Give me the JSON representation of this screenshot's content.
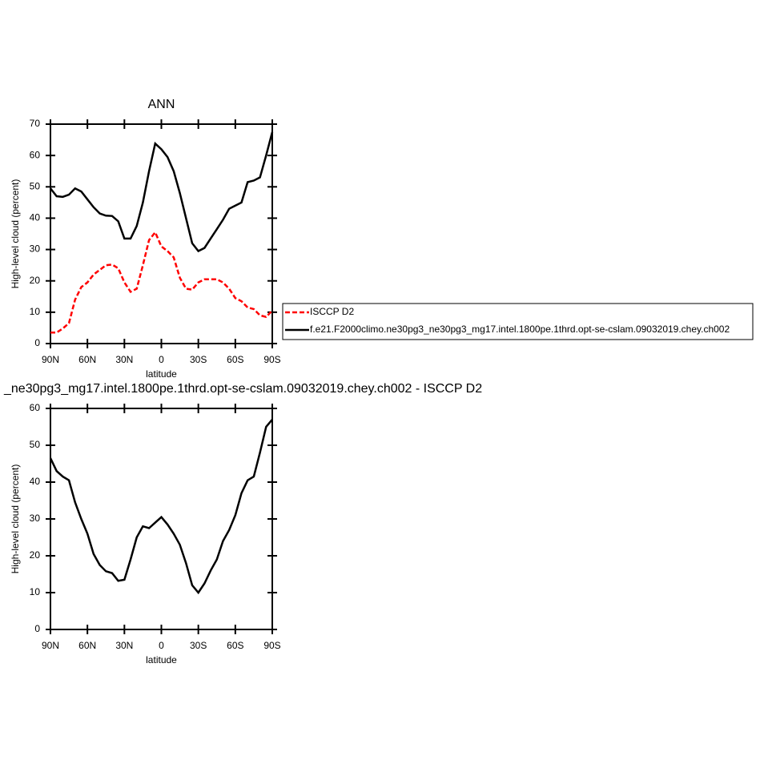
{
  "chart_data": [
    {
      "type": "line",
      "title": "ANN",
      "xlabel": "latitude",
      "ylabel": "High-level cloud (percent)",
      "x": [
        90,
        85,
        80,
        75,
        70,
        65,
        60,
        55,
        50,
        45,
        40,
        35,
        30,
        25,
        20,
        15,
        10,
        5,
        0,
        -5,
        -10,
        -15,
        -20,
        -25,
        -30,
        -35,
        -40,
        -45,
        -50,
        -55,
        -60,
        -65,
        -70,
        -75,
        -80,
        -85,
        -90
      ],
      "series": [
        {
          "name": "ISCCP D2",
          "color": "#ff0000",
          "line_style": "dashed",
          "values": [
            3.5,
            3.5,
            4.8,
            6.5,
            14,
            18,
            19.5,
            22,
            23.5,
            25,
            25.2,
            24,
            19.5,
            16.5,
            17.5,
            25,
            33,
            35.5,
            31,
            29.5,
            27.5,
            21,
            17.5,
            17.2,
            19.5,
            20.5,
            20.5,
            20.5,
            19.5,
            17.5,
            14.5,
            13.5,
            11.5,
            11,
            9,
            8.5,
            10.5
          ]
        },
        {
          "name": "f.e21.F2000climo.ne30pg3_ne30pg3_mg17.intel.1800pe.1thrd.opt-se-cslam.09032019.chey.ch002",
          "color": "#000000",
          "line_style": "solid",
          "values": [
            49.5,
            47,
            46.8,
            47.5,
            49.5,
            48.5,
            46,
            43.5,
            41.5,
            40.8,
            40.7,
            39,
            33.5,
            33.5,
            37.5,
            45,
            55,
            63.8,
            62,
            59.5,
            55,
            48,
            40,
            32,
            29.5,
            30.5,
            33.5,
            36.5,
            39.5,
            43,
            44,
            45,
            51.5,
            52,
            53,
            60,
            67.5
          ]
        }
      ],
      "xlim": [
        90,
        -90
      ],
      "xticks": [
        {
          "value": 90,
          "label": "90N"
        },
        {
          "value": 60,
          "label": "60N"
        },
        {
          "value": 30,
          "label": "30N"
        },
        0,
        {
          "value": -30,
          "label": "30S"
        },
        {
          "value": -60,
          "label": "60S"
        },
        {
          "value": -90,
          "label": "90S"
        }
      ],
      "ylim": [
        0,
        70
      ],
      "yticks": [
        0,
        10,
        20,
        30,
        40,
        50,
        60,
        70
      ],
      "legend": "right"
    },
    {
      "type": "line",
      "title": "_ne30pg3_mg17.intel.1800pe.1thrd.opt-se-cslam.09032019.chey.ch002 - ISCCP D2",
      "xlabel": "latitude",
      "ylabel": "High-level cloud (percent)",
      "x": [
        90,
        85,
        80,
        75,
        70,
        65,
        60,
        55,
        50,
        45,
        40,
        35,
        30,
        25,
        20,
        15,
        10,
        5,
        0,
        -5,
        -10,
        -15,
        -20,
        -25,
        -30,
        -35,
        -40,
        -45,
        -50,
        -55,
        -60,
        -65,
        -70,
        -75,
        -80,
        -85,
        -90
      ],
      "series": [
        {
          "color": "#000000",
          "line_style": "solid",
          "values": [
            46.5,
            43,
            41.5,
            40.5,
            34.5,
            30,
            26,
            20.5,
            17.5,
            15.8,
            15.3,
            13.2,
            13.5,
            19,
            25,
            28,
            27.5,
            29,
            30.5,
            28.5,
            26,
            23,
            18,
            12,
            10,
            12.5,
            16,
            19,
            24,
            27,
            31,
            37,
            40.5,
            41.5,
            48,
            55,
            57
          ]
        }
      ],
      "xlim": [
        90,
        -90
      ],
      "xticks": [
        {
          "value": 90,
          "label": "90N"
        },
        {
          "value": 60,
          "label": "60N"
        },
        {
          "value": 30,
          "label": "30N"
        },
        0,
        {
          "value": -30,
          "label": "30S"
        },
        {
          "value": -60,
          "label": "60S"
        },
        {
          "value": -90,
          "label": "90S"
        }
      ],
      "ylim": [
        0,
        60
      ],
      "yticks": [
        0,
        10,
        20,
        30,
        40,
        50,
        60
      ]
    }
  ]
}
